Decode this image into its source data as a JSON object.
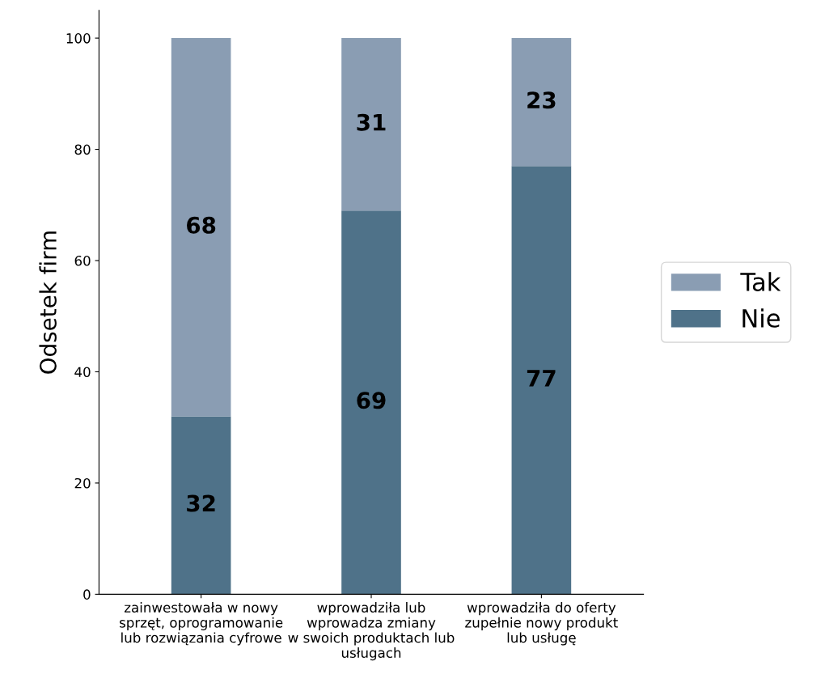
{
  "chart_data": {
    "type": "bar",
    "stacked": true,
    "ylabel": "Odsetek firm",
    "categories": [
      "zainwestowała w nowy\nsprzęt, oprogramowanie\nlub rozwiązania cyfrowe",
      "wprowadziła lub\nwprowadza zmiany\nw swoich produktach lub\nusługach",
      "wprowadziła do oferty\nzupełnie nowy produkt\nlub usługę"
    ],
    "series": [
      {
        "name": "Nie",
        "color": "#4f7289",
        "values": [
          32,
          69,
          77
        ]
      },
      {
        "name": "Tak",
        "color": "#8a9db3",
        "values": [
          68,
          31,
          23
        ]
      }
    ],
    "ylim": [
      0,
      105
    ],
    "yticks": [
      0,
      20,
      40,
      60,
      80,
      100
    ],
    "data_labels": true,
    "legend": "right",
    "grid": false
  }
}
